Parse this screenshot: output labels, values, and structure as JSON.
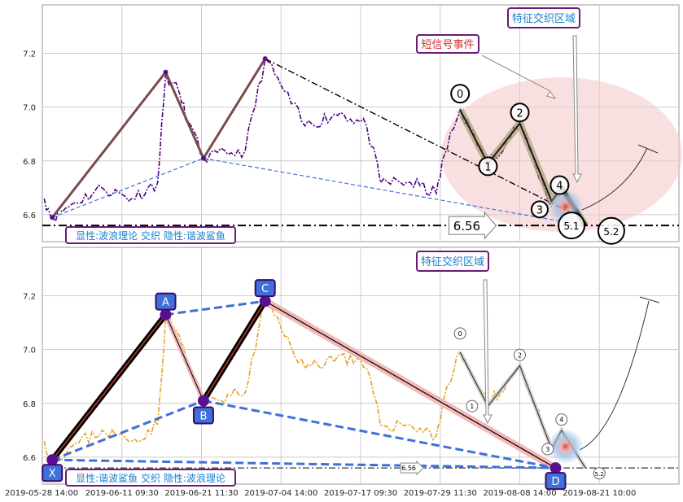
{
  "chart_data": [
    {
      "type": "line",
      "panel": "top",
      "ylim": [
        6.5,
        7.38
      ],
      "yticks": [
        6.6,
        6.8,
        7.0,
        7.2
      ],
      "price_series_color": "#4b0082",
      "threshold_level": 6.56,
      "threshold_label": "6.56",
      "zigzag_points": [
        {
          "x": 0.5,
          "y": 6.59
        },
        {
          "x": 6.2,
          "y": 7.13
        },
        {
          "x": 8.1,
          "y": 6.81
        },
        {
          "x": 11.2,
          "y": 7.18
        },
        {
          "x": 19.8,
          "y": 6.67
        },
        {
          "x": 21.0,
          "y": 6.99
        },
        {
          "x": 22.4,
          "y": 6.79
        },
        {
          "x": 24.0,
          "y": 6.94
        },
        {
          "x": 25.6,
          "y": 6.65
        },
        {
          "x": 26.1,
          "y": 6.7
        },
        {
          "x": 27.3,
          "y": 6.56
        }
      ],
      "wave_labels": [
        "0",
        "1",
        "2",
        "3",
        "4",
        "5.1",
        "5.2"
      ],
      "annotations": {
        "feature_zone": "特征交织区域",
        "short_signal": "短信号事件",
        "legend_box": "显性:波浪理论 交织 隐性:谐波鲨鱼"
      }
    },
    {
      "type": "line",
      "panel": "bottom",
      "ylim": [
        6.5,
        7.38
      ],
      "yticks": [
        6.6,
        6.8,
        7.0,
        7.2
      ],
      "price_series_color": "#e8a020",
      "threshold_level": 6.56,
      "threshold_label": "6.56",
      "xabcd_points": [
        {
          "label": "X",
          "x": 0.5,
          "y": 6.59
        },
        {
          "label": "A",
          "x": 6.2,
          "y": 7.13
        },
        {
          "label": "B",
          "x": 8.1,
          "y": 6.81
        },
        {
          "label": "C",
          "x": 11.2,
          "y": 7.18
        },
        {
          "label": "D",
          "x": 25.8,
          "y": 6.56
        }
      ],
      "wave_labels": [
        "0",
        "1",
        "2",
        "3",
        "4",
        "5.2"
      ],
      "annotations": {
        "feature_zone": "特征交织区域",
        "legend_box": "显性:谐波鲨鱼 交织 隐性:波浪理论"
      }
    }
  ],
  "x_tick_labels": [
    "2019-05-28 14:00",
    "2019-06-11 09:30",
    "2019-06-21 11:30",
    "2019-07-04 14:00",
    "2019-07-17 09:30",
    "2019-07-29 11:30",
    "2019-08-08 14:00",
    "2019-08-21 10:00"
  ],
  "colors": {
    "harmonic_blue": "#3f6fd8",
    "harmonic_purple": "#5b0f8f",
    "zone_red": "#f4c6c6",
    "annotation_border": "#6b1a7a",
    "annotation_text_blue": "#1a7fd0",
    "annotation_text_red": "#d03030"
  }
}
